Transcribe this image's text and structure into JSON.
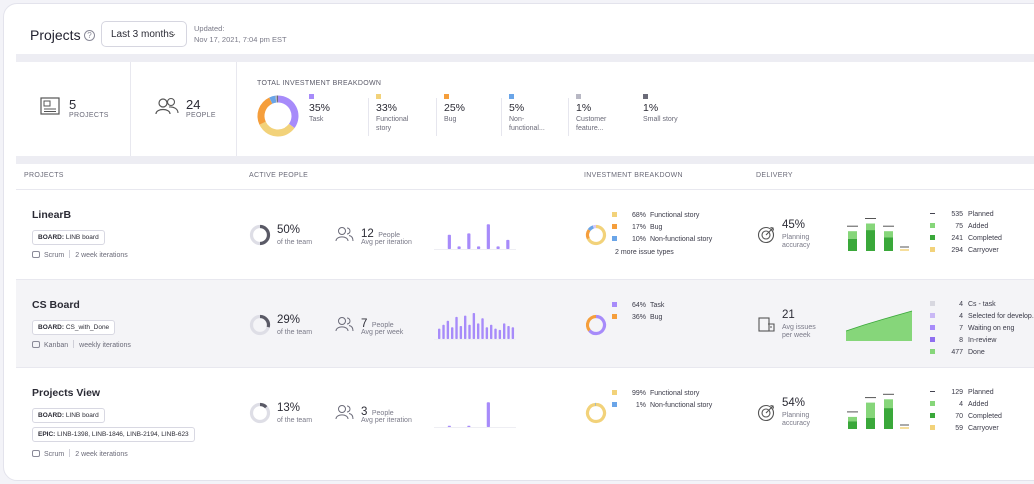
{
  "header": {
    "title": "Projects",
    "help_icon": "?",
    "range_label": "Last 3 months",
    "updated_label": "Updated:",
    "updated_value": "Nov 17, 2021, 7:04 pm EST"
  },
  "summary": {
    "projects_count": "5",
    "projects_label": "PROJECTS",
    "people_count": "24",
    "people_label": "PEOPLE",
    "breakdown_title": "TOTAL INVESTMENT BREAKDOWN",
    "breakdown": [
      {
        "pct": "35%",
        "name": "Task",
        "name2": "",
        "color": "#a78bfa"
      },
      {
        "pct": "33%",
        "name": "Functional",
        "name2": "story",
        "color": "#f2d27a"
      },
      {
        "pct": "25%",
        "name": "Bug",
        "name2": "",
        "color": "#f59e3b"
      },
      {
        "pct": "5%",
        "name": "Non-",
        "name2": "functional...",
        "color": "#6aa5e8"
      },
      {
        "pct": "1%",
        "name": "Customer",
        "name2": "feature...",
        "color": "#b8b8c4"
      },
      {
        "pct": "1%",
        "name": "Small story",
        "name2": "",
        "color": "#6b6b78"
      }
    ]
  },
  "table_headers": {
    "projects": "PROJECTS",
    "active_people": "ACTIVE PEOPLE",
    "investment": "INVESTMENT BREAKDOWN",
    "delivery": "DELIVERY"
  },
  "rows": [
    {
      "name": "LinearB",
      "board_prefix": "BOARD:",
      "board": "LINB board",
      "epic_prefix": "",
      "epic": "",
      "method": "Scrum",
      "cadence": "2 week iterations",
      "active_pct": "50%",
      "active_pct_value": 0.5,
      "active_sub": "of the team",
      "people": "12",
      "people_word": "People",
      "people_sub": "Avg per iteration",
      "spark": [
        0,
        0.55,
        0.1,
        0.6,
        0.1,
        0.95,
        0.1,
        0.35
      ],
      "investment": [
        {
          "pct": "68%",
          "name": "Functional story",
          "color": "#f2d27a"
        },
        {
          "pct": "17%",
          "name": "Bug",
          "color": "#f59e3b"
        },
        {
          "pct": "10%",
          "name": "Non-functional story",
          "color": "#6aa5e8"
        }
      ],
      "investment_more": "2 more issue types",
      "delivery_value": "45%",
      "delivery_label1": "Planning",
      "delivery_label2": "accuracy",
      "delivery_bars": [
        [
          0.55,
          0.9
        ],
        [
          0.95,
          1.25
        ],
        [
          0.62,
          0.9
        ]
      ],
      "legend": [
        {
          "n": "535",
          "label": "Planned",
          "color": "#444450",
          "dash": true
        },
        {
          "n": "75",
          "label": "Added",
          "color": "#86d67a"
        },
        {
          "n": "241",
          "label": "Completed",
          "color": "#3aa83a"
        },
        {
          "n": "294",
          "label": "Carryover",
          "color": "#f2d27a"
        }
      ]
    },
    {
      "name": "CS Board",
      "board_prefix": "BOARD:",
      "board": "CS_with_Done",
      "epic_prefix": "",
      "epic": "",
      "method": "Kanban",
      "cadence": "weekly iterations",
      "active_pct": "29%",
      "active_pct_value": 0.29,
      "active_sub": "of the team",
      "people": "7",
      "people_word": "People",
      "people_sub": "Avg per week",
      "spark": [
        0.4,
        0.55,
        0.7,
        0.45,
        0.85,
        0.5,
        0.9,
        0.55,
        1,
        0.6,
        0.8,
        0.45,
        0.55,
        0.4,
        0.35,
        0.6,
        0.5,
        0.45
      ],
      "investment": [
        {
          "pct": "64%",
          "name": "Task",
          "color": "#a78bfa"
        },
        {
          "pct": "36%",
          "name": "Bug",
          "color": "#f59e3b"
        }
      ],
      "investment_more": "",
      "delivery_value": "21",
      "delivery_label1": "Avg issues",
      "delivery_label2": "per week",
      "delivery_bars": [],
      "legend": [
        {
          "n": "4",
          "label": "Cs - task",
          "color": "#d8d8e0"
        },
        {
          "n": "4",
          "label": "Selected for develop...",
          "color": "#c9b8f5"
        },
        {
          "n": "7",
          "label": "Waiting on eng",
          "color": "#a78bfa"
        },
        {
          "n": "8",
          "label": "In-review",
          "color": "#8f6ff0"
        },
        {
          "n": "477",
          "label": "Done",
          "color": "#86d67a"
        }
      ]
    },
    {
      "name": "Projects View",
      "board_prefix": "BOARD:",
      "board": "LINB board",
      "epic_prefix": "EPIC:",
      "epic": "LINB-1398, LINB-1846, LINB-2194, LINB-623",
      "method": "Scrum",
      "cadence": "2 week iterations",
      "active_pct": "13%",
      "active_pct_value": 0.13,
      "active_sub": "of the team",
      "people": "3",
      "people_word": "People",
      "people_sub": "Avg per iteration",
      "spark": [
        0,
        0.05,
        0,
        0.05,
        0,
        0.95,
        0,
        0
      ],
      "investment": [
        {
          "pct": "99%",
          "name": "Functional story",
          "color": "#f2d27a"
        },
        {
          "pct": "1%",
          "name": "Non-functional story",
          "color": "#6aa5e8"
        }
      ],
      "investment_more": "",
      "delivery_value": "54%",
      "delivery_label1": "Planning",
      "delivery_label2": "accuracy",
      "delivery_bars": [
        [
          0.35,
          0.55
        ],
        [
          0.5,
          1.2
        ],
        [
          0.95,
          1.35
        ]
      ],
      "legend": [
        {
          "n": "129",
          "label": "Planned",
          "color": "#444450",
          "dash": true
        },
        {
          "n": "4",
          "label": "Added",
          "color": "#86d67a"
        },
        {
          "n": "70",
          "label": "Completed",
          "color": "#3aa83a"
        },
        {
          "n": "59",
          "label": "Carryover",
          "color": "#f2d27a"
        }
      ]
    }
  ]
}
